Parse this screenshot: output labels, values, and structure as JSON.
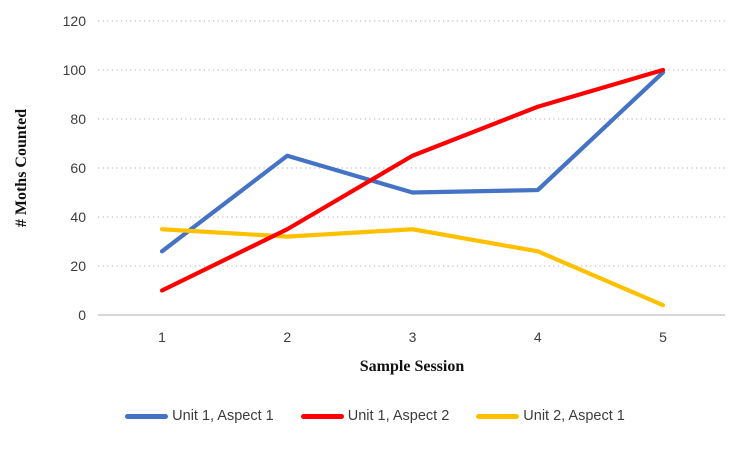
{
  "chart_data": {
    "type": "line",
    "title": "",
    "xlabel": "Sample Session",
    "ylabel": "# Moths Counted",
    "categories": [
      "1",
      "2",
      "3",
      "4",
      "5"
    ],
    "series": [
      {
        "name": "Unit 1, Aspect 1",
        "color": "#4472C4",
        "values": [
          26,
          65,
          50,
          51,
          99
        ]
      },
      {
        "name": "Unit 1, Aspect 2",
        "color": "#FF0000",
        "values": [
          10,
          35,
          65,
          85,
          100
        ]
      },
      {
        "name": "Unit 2, Aspect 1",
        "color": "#FFC000",
        "values": [
          35,
          32,
          35,
          26,
          4
        ]
      }
    ],
    "ylim": [
      0,
      120
    ],
    "yticks": [
      0,
      20,
      40,
      60,
      80,
      100,
      120
    ],
    "grid": "dotted horizontal gridlines",
    "legend_position": "bottom",
    "draw_order": [
      0,
      2,
      1
    ],
    "style": {
      "gridline_color": "#C9C9C9",
      "axis_line_color": "#BFBFBF",
      "tick_label_color": "#3d3d3d",
      "background": "#FFFFFF",
      "line_width": 4.2
    }
  }
}
